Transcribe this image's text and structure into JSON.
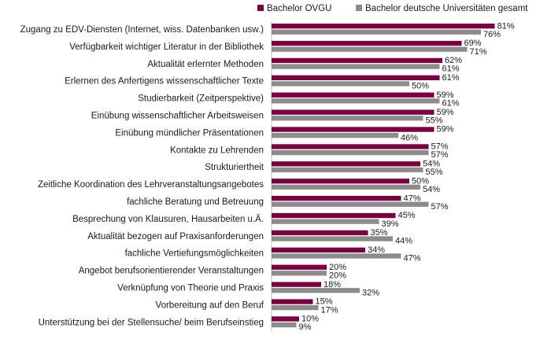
{
  "chart_data": {
    "type": "bar",
    "orientation": "horizontal",
    "title": "",
    "xlabel": "",
    "ylabel": "",
    "xlim": [
      0,
      100
    ],
    "grid": false,
    "legend_position": "top-right",
    "categories": [
      "Zugang zu EDV-Diensten (Internet, wiss. Datenbanken usw.)",
      "Verfügbarkeit wichtiger Literatur in der Bibliothek",
      "Aktualität erlernter Methoden",
      "Erlernen des Anfertigens wissenschaftlicher Texte",
      "Studierbarkeit (Zeitperspektive)",
      "Einübung wissenschaftlicher Arbeitsweisen",
      "Einübung mündlicher Präsentationen",
      "Kontakte zu Lehrenden",
      "Strukturiertheit",
      "Zeitliche Koordination des Lehrveranstaltungsangebotes",
      "fachliche Beratung und Betreuung",
      "Besprechung von Klausuren, Hausarbeiten u.Ä.",
      "Aktualität bezogen auf Praxisanforderungen",
      "fachliche Vertiefungsmöglichkeiten",
      "Angebot berufsorientierender Veranstaltungen",
      "Verknüpfung von Theorie und Praxis",
      "Vorbereitung auf den Beruf",
      "Unterstützung bei der Stellensuche/ beim Berufseinstieg"
    ],
    "series": [
      {
        "name": "Bachelor OVGU",
        "color": "#7B0041",
        "values": [
          81,
          69,
          62,
          61,
          59,
          59,
          59,
          57,
          54,
          50,
          47,
          45,
          35,
          34,
          20,
          18,
          15,
          10
        ],
        "labels": [
          "81%",
          "69%",
          "62%",
          "61%",
          "59%",
          "59%",
          "59%",
          "57%",
          "54%",
          "50%",
          "47%",
          "45%",
          "35%",
          "34%",
          "20%",
          "18%",
          "15%",
          "10%"
        ]
      },
      {
        "name": "Bachelor deutsche Universitäten gesamt",
        "color": "#8C8C8C",
        "values": [
          76,
          71,
          61,
          50,
          61,
          55,
          46,
          57,
          55,
          54,
          57,
          39,
          44,
          47,
          20,
          32,
          17,
          9
        ],
        "labels": [
          "76%",
          "71%",
          "61%",
          "50%",
          "61%",
          "55%",
          "46%",
          "57%",
          "55%",
          "54%",
          "57%",
          "39%",
          "44%",
          "47%",
          "20%",
          "32%",
          "17%",
          "9%"
        ]
      }
    ]
  }
}
